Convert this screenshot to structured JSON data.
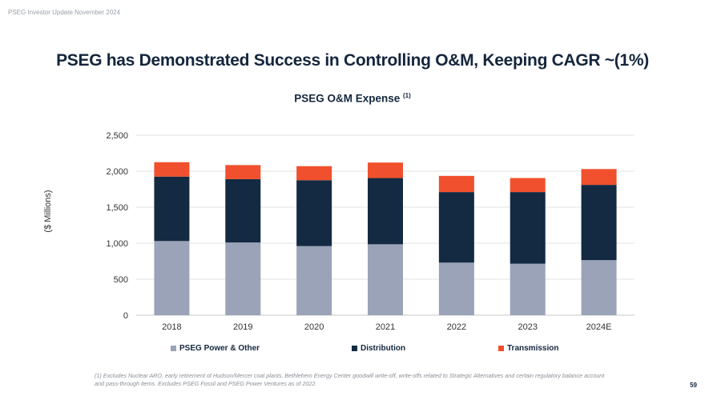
{
  "header_note": "PSEG Investor Update November 2024",
  "title": "PSEG has Demonstrated Success in Controlling O&M, Keeping CAGR ~(1%)",
  "chart_title": "PSEG O&M Expense",
  "chart_title_superscript": "(1)",
  "footnote": "(1) Excludes Nuclear ARO, early retirement of Hudson/Mercer coal plants, Bethlehem Energy Center goodwill write-off, write-offs related to Strategic Alternatives and certain regulatory balance account and pass-through items. Excludes PSEG Fossil and PSEG Power Ventures as of 2022.",
  "page_number": "59",
  "colors": {
    "power_other": "#9aa3b7",
    "distribution": "#132a42",
    "transmission": "#f0502d"
  },
  "chart_data": {
    "type": "bar",
    "stacked": true,
    "title": "PSEG O&M Expense (1)",
    "xlabel": "",
    "ylabel": "($ Millions)",
    "ylim": [
      0,
      2500
    ],
    "yticks": [
      0,
      500,
      1000,
      1500,
      2000,
      2500
    ],
    "ytick_labels": [
      "0",
      "500",
      "1,000",
      "1,500",
      "2,000",
      "2,500"
    ],
    "grid": true,
    "legend_position": "bottom",
    "categories": [
      "2018",
      "2019",
      "2020",
      "2021",
      "2022",
      "2023",
      "2024E"
    ],
    "series": [
      {
        "name": "PSEG Power & Other",
        "values": [
          1030,
          1010,
          960,
          985,
          730,
          715,
          765
        ]
      },
      {
        "name": "Distribution",
        "values": [
          895,
          880,
          915,
          920,
          980,
          995,
          1045
        ]
      },
      {
        "name": "Transmission",
        "values": [
          200,
          195,
          195,
          215,
          225,
          195,
          220
        ]
      }
    ]
  }
}
